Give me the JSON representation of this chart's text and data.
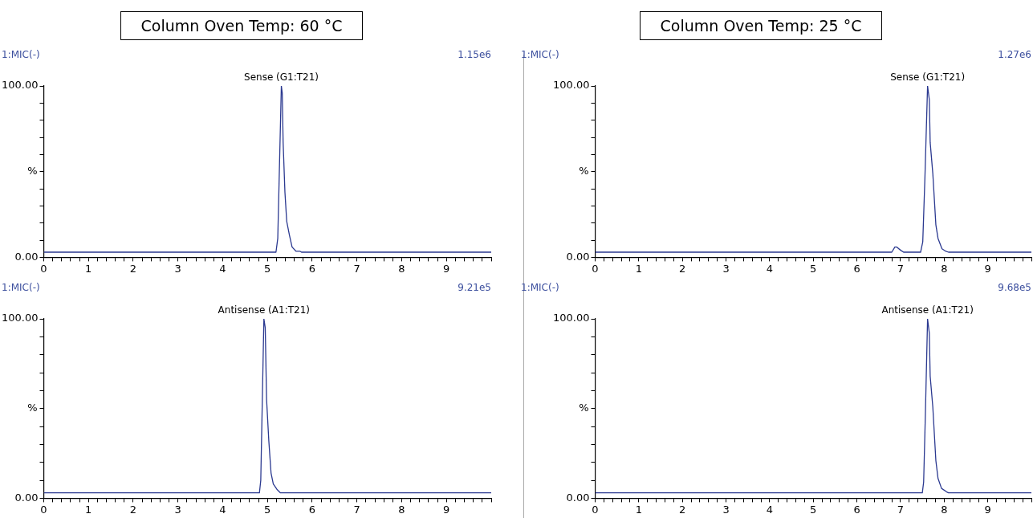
{
  "chart_data": [
    {
      "type": "line",
      "title": "Column Oven Temp: 60 °C",
      "ylabel": "%",
      "annotations": [
        "1:MIC(-)",
        "1.15e6",
        {
          "text": "Sense (G1:T21)",
          "x": 5.31,
          "y": 100
        }
      ],
      "marker": "none",
      "grid": false,
      "x": [
        0,
        5.19,
        5.23,
        5.31,
        5.33,
        5.35,
        5.39,
        5.43,
        5.49,
        5.55,
        5.64,
        5.73,
        5.76,
        10
      ],
      "series": [
        {
          "color": "#2b3990",
          "values": [
            3,
            3,
            11,
            100,
            96,
            67,
            38,
            21,
            13,
            6,
            3.5,
            3.5,
            3,
            3
          ]
        }
      ],
      "xlim": [
        0,
        10
      ],
      "xticks": [
        0,
        {
          "value": 0.2,
          "label": null
        },
        {
          "value": 0.4,
          "label": null
        },
        {
          "value": 0.6,
          "label": null
        },
        {
          "value": 0.8,
          "label": null
        },
        1,
        {
          "value": 1.2,
          "label": null
        },
        {
          "value": 1.4,
          "label": null
        },
        {
          "value": 1.6,
          "label": null
        },
        {
          "value": 1.8,
          "label": null
        },
        2,
        {
          "value": 2.2,
          "label": null
        },
        {
          "value": 2.4,
          "label": null
        },
        {
          "value": 2.6,
          "label": null
        },
        {
          "value": 2.8,
          "label": null
        },
        3,
        {
          "value": 3.2,
          "label": null
        },
        {
          "value": 3.4,
          "label": null
        },
        {
          "value": 3.6,
          "label": null
        },
        {
          "value": 3.8,
          "label": null
        },
        4,
        {
          "value": 4.2,
          "label": null
        },
        {
          "value": 4.4,
          "label": null
        },
        {
          "value": 4.6,
          "label": null
        },
        {
          "value": 4.8,
          "label": null
        },
        5,
        {
          "value": 5.2,
          "label": null
        },
        {
          "value": 5.4,
          "label": null
        },
        {
          "value": 5.6,
          "label": null
        },
        {
          "value": 5.8,
          "label": null
        },
        6,
        {
          "value": 6.2,
          "label": null
        },
        {
          "value": 6.4,
          "label": null
        },
        {
          "value": 6.6,
          "label": null
        },
        {
          "value": 6.8,
          "label": null
        },
        7,
        {
          "value": 7.2,
          "label": null
        },
        {
          "value": 7.4,
          "label": null
        },
        {
          "value": 7.6,
          "label": null
        },
        {
          "value": 7.8,
          "label": null
        },
        8,
        {
          "value": 8.2,
          "label": null
        },
        {
          "value": 8.4,
          "label": null
        },
        {
          "value": 8.6,
          "label": null
        },
        {
          "value": 8.8,
          "label": null
        },
        9,
        {
          "value": 9.2,
          "label": null
        },
        {
          "value": 9.4,
          "label": null
        },
        {
          "value": 9.6,
          "label": null
        },
        {
          "value": 9.8,
          "label": null
        },
        {
          "value": 10,
          "label": null
        }
      ],
      "ylim": [
        0,
        100
      ],
      "yticks": [
        {
          "value": 0,
          "label": "0.00"
        },
        {
          "value": 10,
          "label": null
        },
        {
          "value": 20,
          "label": null
        },
        {
          "value": 30,
          "label": null
        },
        {
          "value": 40,
          "label": null
        },
        {
          "value": 50,
          "label": null
        },
        {
          "value": 60,
          "label": null
        },
        {
          "value": 70,
          "label": null
        },
        {
          "value": 80,
          "label": null
        },
        {
          "value": 90,
          "label": null
        },
        {
          "value": 100,
          "label": "100.00"
        }
      ]
    },
    {
      "type": "line",
      "title": "Column Oven Temp: 25 °C",
      "ylabel": "%",
      "annotations": [
        "1:MIC(-)",
        "1.27e6",
        {
          "text": "Sense (G1:T21)",
          "x": 7.62,
          "y": 100
        }
      ],
      "marker": "none",
      "grid": false,
      "x": [
        0,
        6.8,
        6.87,
        6.91,
        7.01,
        7.07,
        7.46,
        7.51,
        7.56,
        7.62,
        7.66,
        7.68,
        7.74,
        7.81,
        7.86,
        7.95,
        8.04,
        8.1,
        10
      ],
      "series": [
        {
          "color": "#2b3990",
          "values": [
            3,
            3,
            6,
            6,
            4,
            3,
            3,
            9,
            47,
            100,
            92,
            67,
            49,
            19,
            11,
            5,
            3.5,
            3,
            3
          ]
        }
      ],
      "xlim": [
        0,
        10
      ],
      "xticks": [
        0,
        {
          "value": 0.2,
          "label": null
        },
        {
          "value": 0.4,
          "label": null
        },
        {
          "value": 0.6,
          "label": null
        },
        {
          "value": 0.8,
          "label": null
        },
        1,
        {
          "value": 1.2,
          "label": null
        },
        {
          "value": 1.4,
          "label": null
        },
        {
          "value": 1.6,
          "label": null
        },
        {
          "value": 1.8,
          "label": null
        },
        2,
        {
          "value": 2.2,
          "label": null
        },
        {
          "value": 2.4,
          "label": null
        },
        {
          "value": 2.6,
          "label": null
        },
        {
          "value": 2.8,
          "label": null
        },
        3,
        {
          "value": 3.2,
          "label": null
        },
        {
          "value": 3.4,
          "label": null
        },
        {
          "value": 3.6,
          "label": null
        },
        {
          "value": 3.8,
          "label": null
        },
        4,
        {
          "value": 4.2,
          "label": null
        },
        {
          "value": 4.4,
          "label": null
        },
        {
          "value": 4.6,
          "label": null
        },
        {
          "value": 4.8,
          "label": null
        },
        5,
        {
          "value": 5.2,
          "label": null
        },
        {
          "value": 5.4,
          "label": null
        },
        {
          "value": 5.6,
          "label": null
        },
        {
          "value": 5.8,
          "label": null
        },
        6,
        {
          "value": 6.2,
          "label": null
        },
        {
          "value": 6.4,
          "label": null
        },
        {
          "value": 6.6,
          "label": null
        },
        {
          "value": 6.8,
          "label": null
        },
        7,
        {
          "value": 7.2,
          "label": null
        },
        {
          "value": 7.4,
          "label": null
        },
        {
          "value": 7.6,
          "label": null
        },
        {
          "value": 7.8,
          "label": null
        },
        8,
        {
          "value": 8.2,
          "label": null
        },
        {
          "value": 8.4,
          "label": null
        },
        {
          "value": 8.6,
          "label": null
        },
        {
          "value": 8.8,
          "label": null
        },
        9,
        {
          "value": 9.2,
          "label": null
        },
        {
          "value": 9.4,
          "label": null
        },
        {
          "value": 9.6,
          "label": null
        },
        {
          "value": 9.8,
          "label": null
        },
        {
          "value": 10,
          "label": null
        }
      ],
      "ylim": [
        0,
        100
      ],
      "yticks": [
        {
          "value": 0,
          "label": "0.00"
        },
        {
          "value": 10,
          "label": null
        },
        {
          "value": 20,
          "label": null
        },
        {
          "value": 30,
          "label": null
        },
        {
          "value": 40,
          "label": null
        },
        {
          "value": 50,
          "label": null
        },
        {
          "value": 60,
          "label": null
        },
        {
          "value": 70,
          "label": null
        },
        {
          "value": 80,
          "label": null
        },
        {
          "value": 90,
          "label": null
        },
        {
          "value": 100,
          "label": "100.00"
        }
      ]
    },
    {
      "type": "line",
      "ylabel": "%",
      "annotations": [
        "1:MIC(-)",
        "9.21e5",
        {
          "text": "Antisense (A1:T21)",
          "x": 4.92,
          "y": 100
        }
      ],
      "marker": "none",
      "grid": false,
      "x": [
        0,
        4.82,
        4.85,
        4.92,
        4.95,
        4.98,
        5.03,
        5.08,
        5.13,
        5.21,
        5.29,
        10
      ],
      "series": [
        {
          "color": "#2b3990",
          "values": [
            3,
            3,
            10,
            100,
            95,
            55,
            32,
            14,
            8,
            5,
            3,
            3
          ]
        }
      ],
      "xlim": [
        0,
        10
      ],
      "xticks": [
        0,
        {
          "value": 0.2,
          "label": null
        },
        {
          "value": 0.4,
          "label": null
        },
        {
          "value": 0.6,
          "label": null
        },
        {
          "value": 0.8,
          "label": null
        },
        1,
        {
          "value": 1.2,
          "label": null
        },
        {
          "value": 1.4,
          "label": null
        },
        {
          "value": 1.6,
          "label": null
        },
        {
          "value": 1.8,
          "label": null
        },
        2,
        {
          "value": 2.2,
          "label": null
        },
        {
          "value": 2.4,
          "label": null
        },
        {
          "value": 2.6,
          "label": null
        },
        {
          "value": 2.8,
          "label": null
        },
        3,
        {
          "value": 3.2,
          "label": null
        },
        {
          "value": 3.4,
          "label": null
        },
        {
          "value": 3.6,
          "label": null
        },
        {
          "value": 3.8,
          "label": null
        },
        4,
        {
          "value": 4.2,
          "label": null
        },
        {
          "value": 4.4,
          "label": null
        },
        {
          "value": 4.6,
          "label": null
        },
        {
          "value": 4.8,
          "label": null
        },
        5,
        {
          "value": 5.2,
          "label": null
        },
        {
          "value": 5.4,
          "label": null
        },
        {
          "value": 5.6,
          "label": null
        },
        {
          "value": 5.8,
          "label": null
        },
        6,
        {
          "value": 6.2,
          "label": null
        },
        {
          "value": 6.4,
          "label": null
        },
        {
          "value": 6.6,
          "label": null
        },
        {
          "value": 6.8,
          "label": null
        },
        7,
        {
          "value": 7.2,
          "label": null
        },
        {
          "value": 7.4,
          "label": null
        },
        {
          "value": 7.6,
          "label": null
        },
        {
          "value": 7.8,
          "label": null
        },
        8,
        {
          "value": 8.2,
          "label": null
        },
        {
          "value": 8.4,
          "label": null
        },
        {
          "value": 8.6,
          "label": null
        },
        {
          "value": 8.8,
          "label": null
        },
        9,
        {
          "value": 9.2,
          "label": null
        },
        {
          "value": 9.4,
          "label": null
        },
        {
          "value": 9.6,
          "label": null
        },
        {
          "value": 9.8,
          "label": null
        },
        {
          "value": 10,
          "label": null
        }
      ],
      "ylim": [
        0,
        100
      ],
      "yticks": [
        {
          "value": 0,
          "label": "0.00"
        },
        {
          "value": 10,
          "label": null
        },
        {
          "value": 20,
          "label": null
        },
        {
          "value": 30,
          "label": null
        },
        {
          "value": 40,
          "label": null
        },
        {
          "value": 50,
          "label": null
        },
        {
          "value": 60,
          "label": null
        },
        {
          "value": 70,
          "label": null
        },
        {
          "value": 80,
          "label": null
        },
        {
          "value": 90,
          "label": null
        },
        {
          "value": 100,
          "label": "100.00"
        }
      ]
    },
    {
      "type": "line",
      "ylabel": "%",
      "annotations": [
        "1:MIC(-)",
        "9.68e5",
        {
          "text": "Antisense (A1:T21)",
          "x": 7.62,
          "y": 100
        }
      ],
      "marker": "none",
      "grid": false,
      "x": [
        0,
        7.5,
        7.53,
        7.57,
        7.62,
        7.66,
        7.68,
        7.74,
        7.81,
        7.86,
        7.94,
        8.06,
        8.1,
        10
      ],
      "series": [
        {
          "color": "#2b3990",
          "values": [
            3,
            3,
            9,
            47,
            100,
            92,
            68,
            51,
            21,
            11,
            5.5,
            3.5,
            3,
            3
          ]
        }
      ],
      "xlim": [
        0,
        10
      ],
      "xticks": [
        0,
        {
          "value": 0.2,
          "label": null
        },
        {
          "value": 0.4,
          "label": null
        },
        {
          "value": 0.6,
          "label": null
        },
        {
          "value": 0.8,
          "label": null
        },
        1,
        {
          "value": 1.2,
          "label": null
        },
        {
          "value": 1.4,
          "label": null
        },
        {
          "value": 1.6,
          "label": null
        },
        {
          "value": 1.8,
          "label": null
        },
        2,
        {
          "value": 2.2,
          "label": null
        },
        {
          "value": 2.4,
          "label": null
        },
        {
          "value": 2.6,
          "label": null
        },
        {
          "value": 2.8,
          "label": null
        },
        3,
        {
          "value": 3.2,
          "label": null
        },
        {
          "value": 3.4,
          "label": null
        },
        {
          "value": 3.6,
          "label": null
        },
        {
          "value": 3.8,
          "label": null
        },
        4,
        {
          "value": 4.2,
          "label": null
        },
        {
          "value": 4.4,
          "label": null
        },
        {
          "value": 4.6,
          "label": null
        },
        {
          "value": 4.8,
          "label": null
        },
        5,
        {
          "value": 5.2,
          "label": null
        },
        {
          "value": 5.4,
          "label": null
        },
        {
          "value": 5.6,
          "label": null
        },
        {
          "value": 5.8,
          "label": null
        },
        6,
        {
          "value": 6.2,
          "label": null
        },
        {
          "value": 6.4,
          "label": null
        },
        {
          "value": 6.6,
          "label": null
        },
        {
          "value": 6.8,
          "label": null
        },
        7,
        {
          "value": 7.2,
          "label": null
        },
        {
          "value": 7.4,
          "label": null
        },
        {
          "value": 7.6,
          "label": null
        },
        {
          "value": 7.8,
          "label": null
        },
        8,
        {
          "value": 8.2,
          "label": null
        },
        {
          "value": 8.4,
          "label": null
        },
        {
          "value": 8.6,
          "label": null
        },
        {
          "value": 8.8,
          "label": null
        },
        9,
        {
          "value": 9.2,
          "label": null
        },
        {
          "value": 9.4,
          "label": null
        },
        {
          "value": 9.6,
          "label": null
        },
        {
          "value": 9.8,
          "label": null
        },
        {
          "value": 10,
          "label": null
        }
      ],
      "ylim": [
        0,
        100
      ],
      "yticks": [
        {
          "value": 0,
          "label": "0.00"
        },
        {
          "value": 10,
          "label": null
        },
        {
          "value": 20,
          "label": null
        },
        {
          "value": 30,
          "label": null
        },
        {
          "value": 40,
          "label": null
        },
        {
          "value": 50,
          "label": null
        },
        {
          "value": 60,
          "label": null
        },
        {
          "value": 70,
          "label": null
        },
        {
          "value": 80,
          "label": null
        },
        {
          "value": 90,
          "label": null
        },
        {
          "value": 100,
          "label": "100.00"
        }
      ]
    }
  ]
}
